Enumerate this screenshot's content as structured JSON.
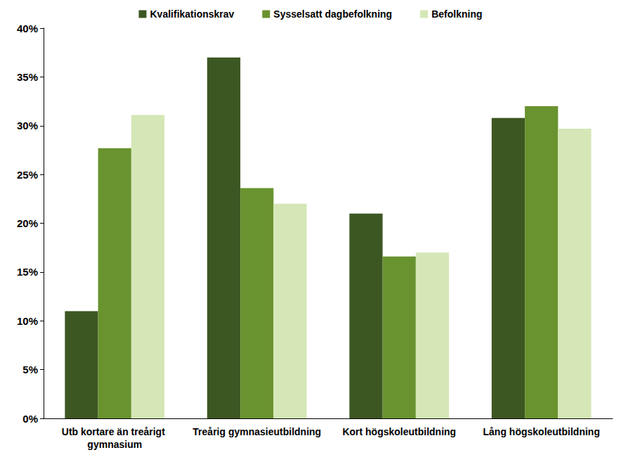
{
  "chart_data": {
    "type": "bar",
    "categories": [
      "Utb kortare än treårigt gymnasium",
      "Treårig gymnasieutbildning",
      "Kort högskoleutbildning",
      "Lång högskoleutbildning"
    ],
    "series": [
      {
        "name": "Kvalifikationskrav",
        "color": "#3d5723",
        "values": [
          11.0,
          37.0,
          21.0,
          30.8
        ]
      },
      {
        "name": "Sysselsatt dagbefolkning",
        "color": "#69932f",
        "values": [
          27.7,
          23.6,
          16.6,
          32.0
        ]
      },
      {
        "name": "Befolkning",
        "color": "#d5e7b6",
        "values": [
          31.1,
          22.0,
          17.0,
          29.7
        ]
      }
    ],
    "ylim": [
      0,
      40
    ],
    "yticks": [
      {
        "value": 0,
        "label": "0%"
      },
      {
        "value": 5,
        "label": "5%"
      },
      {
        "value": 10,
        "label": "10%"
      },
      {
        "value": 15,
        "label": "15%"
      },
      {
        "value": 20,
        "label": "20%"
      },
      {
        "value": 25,
        "label": "25%"
      },
      {
        "value": 30,
        "label": "30%"
      },
      {
        "value": 35,
        "label": "35%"
      },
      {
        "value": 40,
        "label": "40%"
      }
    ],
    "grid": false,
    "legend": "top"
  }
}
